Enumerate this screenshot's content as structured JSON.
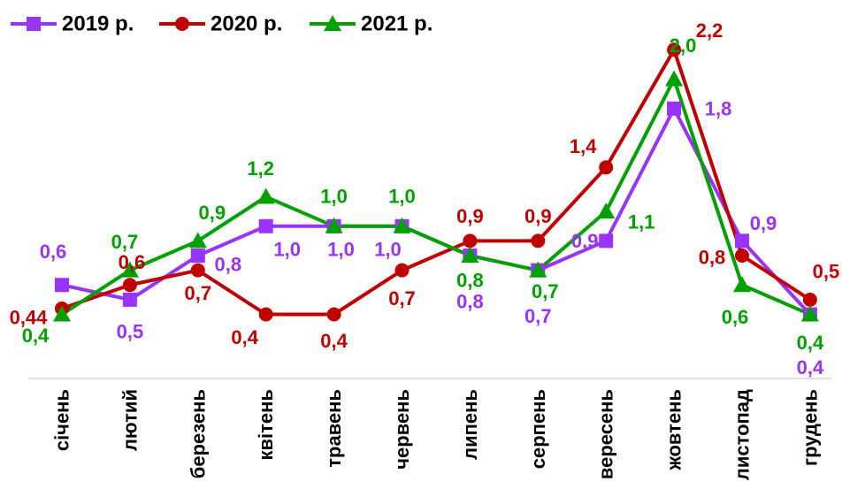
{
  "chart_data": {
    "type": "line",
    "categories": [
      "січень",
      "лютий",
      "березень",
      "квітень",
      "травень",
      "червень",
      "липень",
      "серпень",
      "вересень",
      "жовтень",
      "листопад",
      "грудень"
    ],
    "series": [
      {
        "name": "2019 р.",
        "color": "#9933FF",
        "marker": "square",
        "values": [
          0.6,
          0.5,
          0.8,
          1.0,
          1.0,
          1.0,
          0.8,
          0.7,
          0.9,
          1.8,
          0.9,
          0.4
        ],
        "labels": [
          "0,6",
          "0,5",
          "0,8",
          "1,0",
          "1,0",
          "1,0",
          "0,8",
          "0,7",
          "0,9",
          "1,8",
          "0,9",
          "0,4"
        ]
      },
      {
        "name": "2020 р.",
        "color": "#C00000",
        "marker": "circle",
        "values": [
          0.44,
          0.6,
          0.7,
          0.4,
          0.4,
          0.7,
          0.9,
          0.9,
          1.4,
          2.2,
          0.8,
          0.5
        ],
        "labels": [
          "0,44",
          "0,6",
          "0,7",
          "0,4",
          "0,4",
          "0,7",
          "0,9",
          "0,9",
          "1,4",
          "2,2",
          "0,8",
          "0,5"
        ]
      },
      {
        "name": "2021 р.",
        "color": "#00A000",
        "marker": "triangle",
        "values": [
          0.4,
          0.7,
          0.9,
          1.2,
          1.0,
          1.0,
          0.8,
          0.7,
          1.1,
          2.0,
          0.6,
          0.4
        ],
        "labels": [
          "0,4",
          "0,7",
          "0,9",
          "1,2",
          "1,0",
          "1,0",
          "0,8",
          "0,7",
          "1,1",
          "2,0",
          "0,6",
          "0,4"
        ]
      }
    ],
    "ylim": [
      0,
      2.25
    ],
    "grid": false,
    "legend_position": "top-left"
  }
}
